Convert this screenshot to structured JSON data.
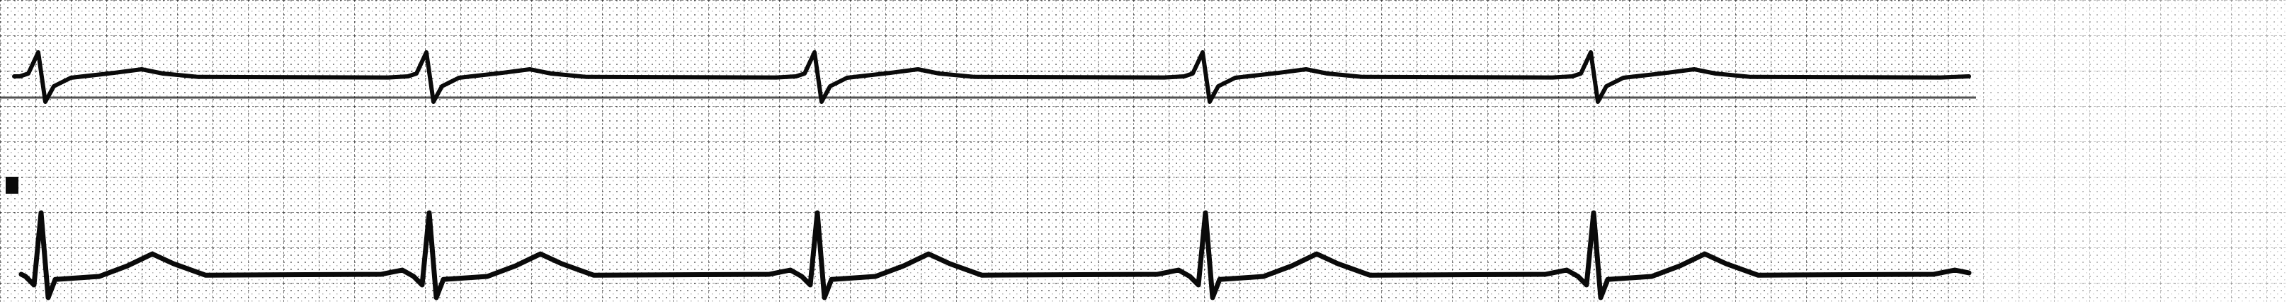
{
  "strip": {
    "background_color": "#ffffff",
    "grid_color": "#2a2a2a",
    "trace_color": "#0a0a0a",
    "leads": [
      {
        "beats": 5,
        "rhythm": "regular"
      },
      {
        "beats": 5,
        "rhythm": "regular"
      }
    ]
  }
}
